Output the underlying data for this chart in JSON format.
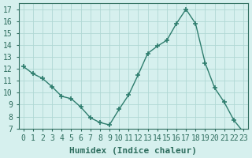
{
  "x": [
    0,
    1,
    2,
    3,
    4,
    5,
    6,
    7,
    8,
    9,
    10,
    11,
    12,
    13,
    14,
    15,
    16,
    17,
    18,
    19,
    20,
    21,
    22,
    23
  ],
  "y": [
    12.2,
    11.6,
    11.2,
    10.5,
    9.7,
    9.5,
    8.8,
    7.9,
    7.5,
    7.3,
    8.6,
    9.8,
    11.5,
    13.3,
    13.9,
    14.4,
    15.8,
    17.0,
    15.8,
    12.5,
    10.4,
    9.2,
    7.7,
    6.7
  ],
  "line_color": "#2e7d6e",
  "marker": "+",
  "marker_size": 5,
  "bg_color": "#d6f0ee",
  "grid_color": "#b0d8d4",
  "xlabel": "Humidex (Indice chaleur)",
  "xlim": [
    -0.5,
    23.5
  ],
  "ylim": [
    7,
    17.5
  ],
  "yticks": [
    7,
    8,
    9,
    10,
    11,
    12,
    13,
    14,
    15,
    16,
    17
  ],
  "xticks": [
    0,
    1,
    2,
    3,
    4,
    5,
    6,
    7,
    8,
    9,
    10,
    11,
    12,
    13,
    14,
    15,
    16,
    17,
    18,
    19,
    20,
    21,
    22,
    23
  ],
  "tick_color": "#2e6d5e",
  "label_fontsize": 7,
  "xlabel_fontsize": 8
}
